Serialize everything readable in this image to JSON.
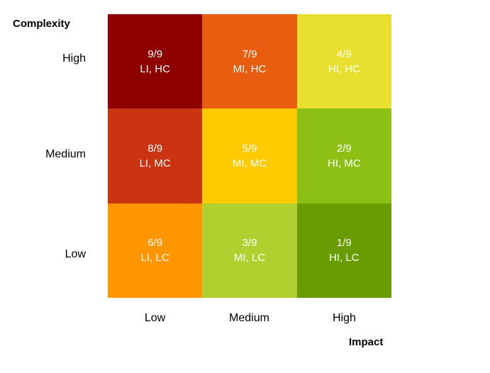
{
  "y_axis": {
    "title": "Complexity",
    "ticks": [
      "High",
      "Medium",
      "Low"
    ]
  },
  "x_axis": {
    "title": "Impact",
    "ticks": [
      "Low",
      "Medium",
      "High"
    ]
  },
  "cells": [
    {
      "rank": "9/9",
      "code": "LI, HC",
      "color": "#8e0000"
    },
    {
      "rank": "7/9",
      "code": "MI, HC",
      "color": "#e85d10"
    },
    {
      "rank": "4/9",
      "code": "HI, HC",
      "color": "#e8df2e"
    },
    {
      "rank": "8/9",
      "code": "LI, MC",
      "color": "#cc3312"
    },
    {
      "rank": "5/9",
      "code": "MI, MC",
      "color": "#ffcb00"
    },
    {
      "rank": "2/9",
      "code": "HI, MC",
      "color": "#8cc014"
    },
    {
      "rank": "6/9",
      "code": "LI, LC",
      "color": "#ff9600"
    },
    {
      "rank": "3/9",
      "code": "MI, LC",
      "color": "#b0d030"
    },
    {
      "rank": "1/9",
      "code": "HI, LC",
      "color": "#699c00"
    }
  ]
}
